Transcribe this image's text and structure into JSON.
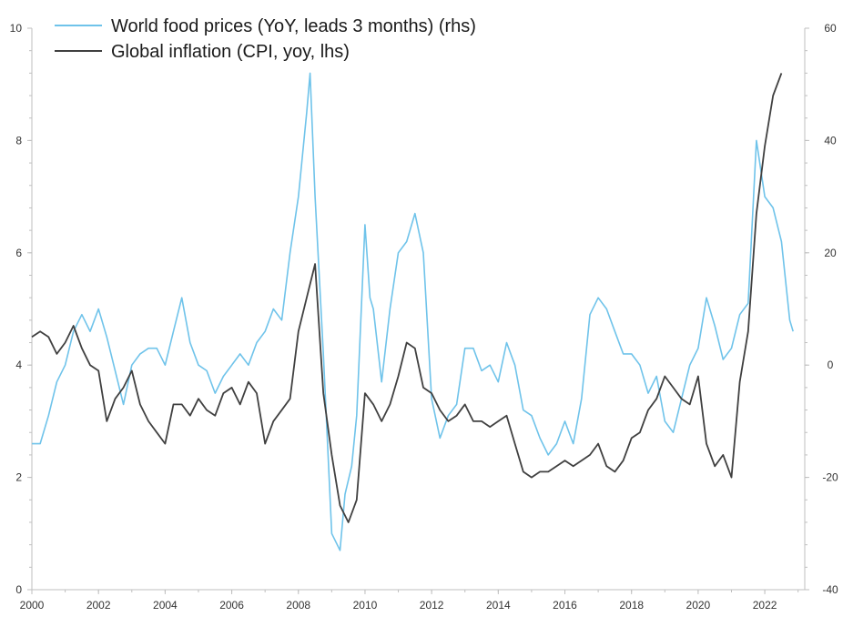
{
  "chart_data": {
    "type": "line",
    "title": "",
    "xlabel": "",
    "x_range": [
      2000,
      2023.2
    ],
    "x_ticks": [
      2000,
      2002,
      2004,
      2006,
      2008,
      2010,
      2012,
      2014,
      2016,
      2018,
      2020,
      2022
    ],
    "ylim_left": [
      0,
      10
    ],
    "left_ticks": [
      0,
      2,
      4,
      6,
      8,
      10
    ],
    "ylim_right": [
      -40,
      60
    ],
    "right_ticks": [
      -40,
      -20,
      0,
      20,
      40,
      60
    ],
    "legend_position": "top-left",
    "colors": {
      "food": "#6fc3ea",
      "inflation": "#404040",
      "axis": "#bfbfbf"
    },
    "series": [
      {
        "name": "World food prices (YoY, leads 3 months) (rhs)",
        "axis": "right",
        "x": [
          2000.0,
          2000.25,
          2000.5,
          2000.75,
          2001.0,
          2001.25,
          2001.5,
          2001.75,
          2002.0,
          2002.25,
          2002.5,
          2002.75,
          2003.0,
          2003.25,
          2003.5,
          2003.75,
          2004.0,
          2004.25,
          2004.5,
          2004.75,
          2005.0,
          2005.25,
          2005.5,
          2005.75,
          2006.0,
          2006.25,
          2006.5,
          2006.75,
          2007.0,
          2007.25,
          2007.5,
          2007.75,
          2008.0,
          2008.25,
          2008.35,
          2008.5,
          2008.75,
          2009.0,
          2009.25,
          2009.4,
          2009.6,
          2009.75,
          2010.0,
          2010.15,
          2010.25,
          2010.5,
          2010.75,
          2011.0,
          2011.25,
          2011.5,
          2011.75,
          2012.0,
          2012.25,
          2012.5,
          2012.75,
          2013.0,
          2013.25,
          2013.5,
          2013.75,
          2014.0,
          2014.25,
          2014.5,
          2014.75,
          2015.0,
          2015.25,
          2015.5,
          2015.75,
          2016.0,
          2016.25,
          2016.5,
          2016.75,
          2017.0,
          2017.25,
          2017.5,
          2017.75,
          2018.0,
          2018.25,
          2018.5,
          2018.75,
          2019.0,
          2019.25,
          2019.5,
          2019.75,
          2020.0,
          2020.25,
          2020.5,
          2020.75,
          2021.0,
          2021.25,
          2021.5,
          2021.75,
          2022.0,
          2022.25,
          2022.5,
          2022.75,
          2022.85
        ],
        "values": [
          -14,
          -14,
          -9,
          -3,
          0,
          6,
          9,
          6,
          10,
          5,
          -1,
          -7,
          0,
          2,
          3,
          3,
          0,
          6,
          12,
          4,
          0,
          -1,
          -5,
          -2,
          0,
          2,
          0,
          4,
          6,
          10,
          8,
          20,
          30,
          45,
          52,
          30,
          2,
          -30,
          -33,
          -23,
          -18,
          -9,
          25,
          12,
          10,
          -3,
          10,
          20,
          22,
          27,
          20,
          -6,
          -13,
          -9,
          -7,
          3,
          3,
          -1,
          0,
          -3,
          4,
          0,
          -8,
          -9,
          -13,
          -16,
          -14,
          -10,
          -14,
          -6,
          9,
          12,
          10,
          6,
          2,
          2,
          0,
          -5,
          -2,
          -10,
          -12,
          -6,
          0,
          3,
          12,
          7,
          1,
          3,
          9,
          11,
          40,
          30,
          28,
          22,
          8,
          6
        ],
        "color": "#6fc3ea"
      },
      {
        "name": "Global inflation (CPI, yoy, lhs)",
        "axis": "left",
        "x": [
          2000.0,
          2000.25,
          2000.5,
          2000.75,
          2001.0,
          2001.25,
          2001.5,
          2001.75,
          2002.0,
          2002.25,
          2002.5,
          2002.75,
          2003.0,
          2003.25,
          2003.5,
          2003.75,
          2004.0,
          2004.25,
          2004.5,
          2004.75,
          2005.0,
          2005.25,
          2005.5,
          2005.75,
          2006.0,
          2006.25,
          2006.5,
          2006.75,
          2007.0,
          2007.25,
          2007.5,
          2007.75,
          2008.0,
          2008.25,
          2008.5,
          2008.75,
          2009.0,
          2009.25,
          2009.5,
          2009.75,
          2010.0,
          2010.25,
          2010.5,
          2010.75,
          2011.0,
          2011.25,
          2011.5,
          2011.75,
          2012.0,
          2012.25,
          2012.5,
          2012.75,
          2013.0,
          2013.25,
          2013.5,
          2013.75,
          2014.0,
          2014.25,
          2014.5,
          2014.75,
          2015.0,
          2015.25,
          2015.5,
          2015.75,
          2016.0,
          2016.25,
          2016.5,
          2016.75,
          2017.0,
          2017.25,
          2017.5,
          2017.75,
          2018.0,
          2018.25,
          2018.5,
          2018.75,
          2019.0,
          2019.25,
          2019.5,
          2019.75,
          2020.0,
          2020.25,
          2020.5,
          2020.75,
          2021.0,
          2021.25,
          2021.5,
          2021.75,
          2022.0,
          2022.25,
          2022.5
        ],
        "values": [
          4.5,
          4.6,
          4.5,
          4.2,
          4.4,
          4.7,
          4.3,
          4.0,
          3.9,
          3.0,
          3.4,
          3.6,
          3.9,
          3.3,
          3.0,
          2.8,
          2.6,
          3.3,
          3.3,
          3.1,
          3.4,
          3.2,
          3.1,
          3.5,
          3.6,
          3.3,
          3.7,
          3.5,
          2.6,
          3.0,
          3.2,
          3.4,
          4.6,
          5.2,
          5.8,
          3.5,
          2.4,
          1.5,
          1.2,
          1.6,
          3.5,
          3.3,
          3.0,
          3.3,
          3.8,
          4.4,
          4.3,
          3.6,
          3.5,
          3.2,
          3.0,
          3.1,
          3.3,
          3.0,
          3.0,
          2.9,
          3.0,
          3.1,
          2.6,
          2.1,
          2.0,
          2.1,
          2.1,
          2.2,
          2.3,
          2.2,
          2.3,
          2.4,
          2.6,
          2.2,
          2.1,
          2.3,
          2.7,
          2.8,
          3.2,
          3.4,
          3.8,
          3.6,
          3.4,
          3.3,
          3.8,
          2.6,
          2.2,
          2.4,
          2.0,
          3.7,
          4.6,
          6.7,
          7.9,
          8.8,
          9.2
        ],
        "color": "#404040"
      }
    ]
  }
}
